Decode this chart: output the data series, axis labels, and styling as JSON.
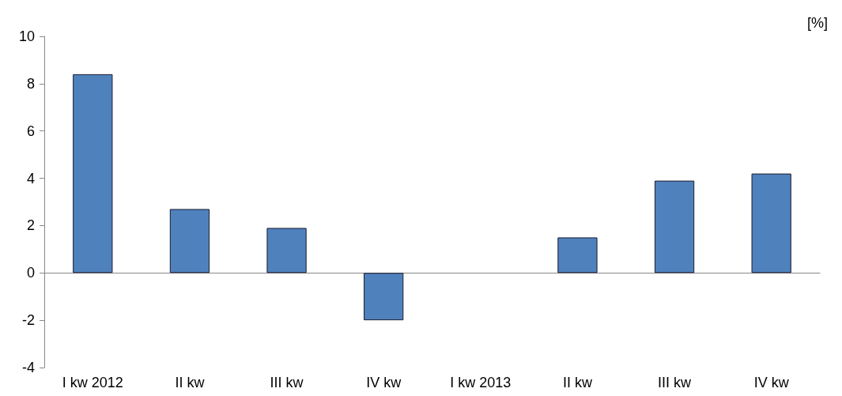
{
  "chart_data": {
    "type": "bar",
    "ylabel": "[%]",
    "categories": [
      "I kw 2012",
      "II kw",
      "III kw",
      "IV kw",
      "I kw 2013",
      "II kw",
      "III kw",
      "IV kw"
    ],
    "values": [
      8.4,
      2.7,
      1.9,
      -2.0,
      0,
      1.5,
      3.9,
      4.2
    ],
    "color": "#4f81bd",
    "ylim": [
      -4,
      10
    ],
    "yticks": [
      -4,
      -2,
      0,
      2,
      4,
      6,
      8,
      10
    ]
  }
}
